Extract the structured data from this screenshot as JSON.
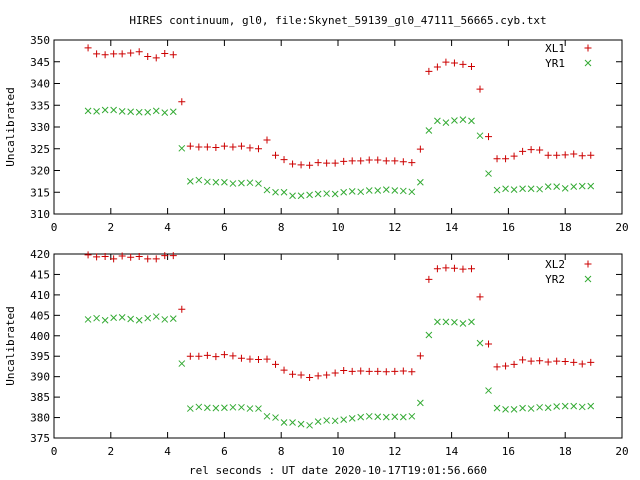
{
  "chart_data": [
    {
      "type": "scatter",
      "title": "HIRES continuum, gl0, file:Skynet_59139_gl0_47111_56665.cyb.txt",
      "xlabel": "",
      "ylabel": "Uncalibrated",
      "xlim": [
        0,
        20
      ],
      "ylim": [
        310,
        350
      ],
      "x_ticks": [
        0,
        2,
        4,
        6,
        8,
        10,
        12,
        14,
        16,
        18,
        20
      ],
      "y_ticks": [
        310,
        315,
        320,
        325,
        330,
        335,
        340,
        345,
        350
      ],
      "grid": false,
      "legend_position": "top-right",
      "series": [
        {
          "name": "XL1",
          "marker": "plus",
          "color": "#cc0000",
          "x": [
            1.2,
            1.5,
            1.8,
            2.1,
            2.4,
            2.7,
            3.0,
            3.3,
            3.6,
            3.9,
            4.2,
            4.5,
            4.8,
            5.1,
            5.4,
            5.7,
            6.0,
            6.3,
            6.6,
            6.9,
            7.2,
            7.5,
            7.8,
            8.1,
            8.4,
            8.7,
            9.0,
            9.3,
            9.6,
            9.9,
            10.2,
            10.5,
            10.8,
            11.1,
            11.4,
            11.7,
            12.0,
            12.3,
            12.6,
            12.9,
            13.2,
            13.5,
            13.8,
            14.1,
            14.4,
            14.7,
            15.0,
            15.3,
            15.6,
            15.9,
            16.2,
            16.5,
            16.8,
            17.1,
            17.4,
            17.7,
            18.0,
            18.3,
            18.6,
            18.9
          ],
          "y": [
            348.2,
            346.8,
            346.6,
            346.8,
            346.8,
            347.0,
            347.3,
            346.2,
            345.9,
            346.9,
            346.6,
            335.8,
            325.6,
            325.4,
            325.4,
            325.3,
            325.6,
            325.4,
            325.6,
            325.2,
            325.0,
            327.0,
            323.5,
            322.5,
            321.5,
            321.3,
            321.2,
            321.8,
            321.7,
            321.7,
            322.1,
            322.2,
            322.2,
            322.4,
            322.4,
            322.2,
            322.2,
            322.0,
            321.8,
            324.9,
            342.8,
            343.8,
            344.9,
            344.7,
            344.4,
            343.9,
            338.7,
            327.8,
            322.7,
            322.7,
            323.3,
            324.4,
            324.8,
            324.7,
            323.5,
            323.5,
            323.6,
            323.8,
            323.4,
            323.5
          ]
        },
        {
          "name": "YR1",
          "marker": "cross",
          "color": "#33aa33",
          "x": [
            1.2,
            1.5,
            1.8,
            2.1,
            2.4,
            2.7,
            3.0,
            3.3,
            3.6,
            3.9,
            4.2,
            4.5,
            4.8,
            5.1,
            5.4,
            5.7,
            6.0,
            6.3,
            6.6,
            6.9,
            7.2,
            7.5,
            7.8,
            8.1,
            8.4,
            8.7,
            9.0,
            9.3,
            9.6,
            9.9,
            10.2,
            10.5,
            10.8,
            11.1,
            11.4,
            11.7,
            12.0,
            12.3,
            12.6,
            12.9,
            13.2,
            13.5,
            13.8,
            14.1,
            14.4,
            14.7,
            15.0,
            15.3,
            15.6,
            15.9,
            16.2,
            16.5,
            16.8,
            17.1,
            17.4,
            17.7,
            18.0,
            18.3,
            18.6,
            18.9
          ],
          "y": [
            333.7,
            333.6,
            333.9,
            333.9,
            333.6,
            333.5,
            333.4,
            333.4,
            333.7,
            333.3,
            333.5,
            325.1,
            317.5,
            317.8,
            317.4,
            317.3,
            317.3,
            317.0,
            317.1,
            317.2,
            317.0,
            315.5,
            315.0,
            315.0,
            314.2,
            314.2,
            314.4,
            314.6,
            314.7,
            314.6,
            315.0,
            315.2,
            315.1,
            315.4,
            315.4,
            315.6,
            315.4,
            315.3,
            315.1,
            317.3,
            329.2,
            331.4,
            331.0,
            331.5,
            331.7,
            331.4,
            328.0,
            319.3,
            315.5,
            315.8,
            315.6,
            315.8,
            315.8,
            315.7,
            316.3,
            316.3,
            315.9,
            316.3,
            316.4,
            316.4
          ]
        }
      ]
    },
    {
      "type": "scatter",
      "title": "",
      "xlabel": "rel seconds : UT date 2020-10-17T19:01:56.660",
      "ylabel": "Uncalibrated",
      "xlim": [
        0,
        20
      ],
      "ylim": [
        375,
        420
      ],
      "x_ticks": [
        0,
        2,
        4,
        6,
        8,
        10,
        12,
        14,
        16,
        18,
        20
      ],
      "y_ticks": [
        375,
        380,
        385,
        390,
        395,
        400,
        405,
        410,
        415,
        420
      ],
      "grid": false,
      "legend_position": "top-right",
      "series": [
        {
          "name": "XL2",
          "marker": "plus",
          "color": "#cc0000",
          "x": [
            1.2,
            1.5,
            1.8,
            2.1,
            2.4,
            2.7,
            3.0,
            3.3,
            3.6,
            3.9,
            4.2,
            4.5,
            4.8,
            5.1,
            5.4,
            5.7,
            6.0,
            6.3,
            6.6,
            6.9,
            7.2,
            7.5,
            7.8,
            8.1,
            8.4,
            8.7,
            9.0,
            9.3,
            9.6,
            9.9,
            10.2,
            10.5,
            10.8,
            11.1,
            11.4,
            11.7,
            12.0,
            12.3,
            12.6,
            12.9,
            13.2,
            13.5,
            13.8,
            14.1,
            14.4,
            14.7,
            15.0,
            15.3,
            15.6,
            15.9,
            16.2,
            16.5,
            16.8,
            17.1,
            17.4,
            17.7,
            18.0,
            18.3,
            18.6,
            18.9
          ],
          "y": [
            419.8,
            419.3,
            419.4,
            418.8,
            419.5,
            419.2,
            419.4,
            418.8,
            418.8,
            419.6,
            419.6,
            406.5,
            395.0,
            395.0,
            395.2,
            394.9,
            395.4,
            395.1,
            394.5,
            394.3,
            394.2,
            394.3,
            393.0,
            391.6,
            390.6,
            390.4,
            389.8,
            390.2,
            390.4,
            390.9,
            391.5,
            391.3,
            391.4,
            391.3,
            391.3,
            391.2,
            391.3,
            391.4,
            391.2,
            395.1,
            413.8,
            416.4,
            416.6,
            416.5,
            416.3,
            416.4,
            409.5,
            398.0,
            392.4,
            392.6,
            393.0,
            394.1,
            393.8,
            393.9,
            393.6,
            393.8,
            393.7,
            393.5,
            393.1,
            393.5
          ]
        },
        {
          "name": "YR2",
          "marker": "cross",
          "color": "#33aa33",
          "x": [
            1.2,
            1.5,
            1.8,
            2.1,
            2.4,
            2.7,
            3.0,
            3.3,
            3.6,
            3.9,
            4.2,
            4.5,
            4.8,
            5.1,
            5.4,
            5.7,
            6.0,
            6.3,
            6.6,
            6.9,
            7.2,
            7.5,
            7.8,
            8.1,
            8.4,
            8.7,
            9.0,
            9.3,
            9.6,
            9.9,
            10.2,
            10.5,
            10.8,
            11.1,
            11.4,
            11.7,
            12.0,
            12.3,
            12.6,
            12.9,
            13.2,
            13.5,
            13.8,
            14.1,
            14.4,
            14.7,
            15.0,
            15.3,
            15.6,
            15.9,
            16.2,
            16.5,
            16.8,
            17.1,
            17.4,
            17.7,
            18.0,
            18.3,
            18.6,
            18.9
          ],
          "y": [
            404.0,
            404.3,
            403.8,
            404.4,
            404.5,
            404.1,
            403.8,
            404.3,
            404.7,
            404.0,
            404.2,
            393.2,
            382.2,
            382.6,
            382.4,
            382.3,
            382.4,
            382.5,
            382.5,
            382.2,
            382.2,
            380.3,
            380.0,
            378.8,
            378.8,
            378.4,
            378.1,
            379.0,
            379.3,
            379.2,
            379.5,
            379.8,
            380.1,
            380.3,
            380.2,
            380.1,
            380.2,
            380.1,
            380.3,
            383.6,
            400.2,
            403.4,
            403.4,
            403.3,
            403.0,
            403.4,
            398.2,
            386.6,
            382.3,
            382.0,
            382.0,
            382.3,
            382.2,
            382.5,
            382.4,
            382.7,
            382.8,
            382.8,
            382.6,
            382.8
          ]
        }
      ]
    }
  ]
}
